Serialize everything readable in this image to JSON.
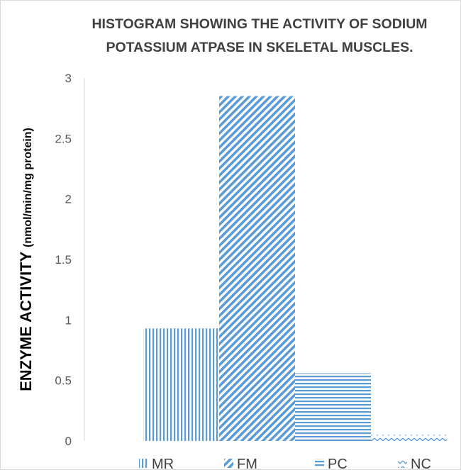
{
  "chart_data": {
    "type": "bar",
    "title_lines": [
      "HISTOGRAM SHOWING THE ACTIVITY OF SODIUM",
      "POTASSIUM ATPASE IN SKELETAL MUSCLES."
    ],
    "ylabel_main": "ENZYME ACTIVITY ",
    "ylabel_unit": "(nmol/min/mg protein)",
    "xlabel": "",
    "ylim": [
      0,
      3
    ],
    "yticks": [
      0,
      0.5,
      1,
      1.5,
      2,
      2.5,
      3
    ],
    "ytick_labels": [
      "0",
      "0.5",
      "1",
      "1.5",
      "2",
      "2.5",
      "3"
    ],
    "grid": false,
    "legend_position": "bottom",
    "bar_color": "#5b9bd5",
    "series": [
      {
        "name": "MR",
        "value": 0.93,
        "pattern": "vertical"
      },
      {
        "name": "FM",
        "value": 2.85,
        "pattern": "diagonal"
      },
      {
        "name": "PC",
        "value": 0.56,
        "pattern": "horizontal"
      },
      {
        "name": "NC",
        "value": 0.05,
        "pattern": "zigzag"
      }
    ]
  }
}
